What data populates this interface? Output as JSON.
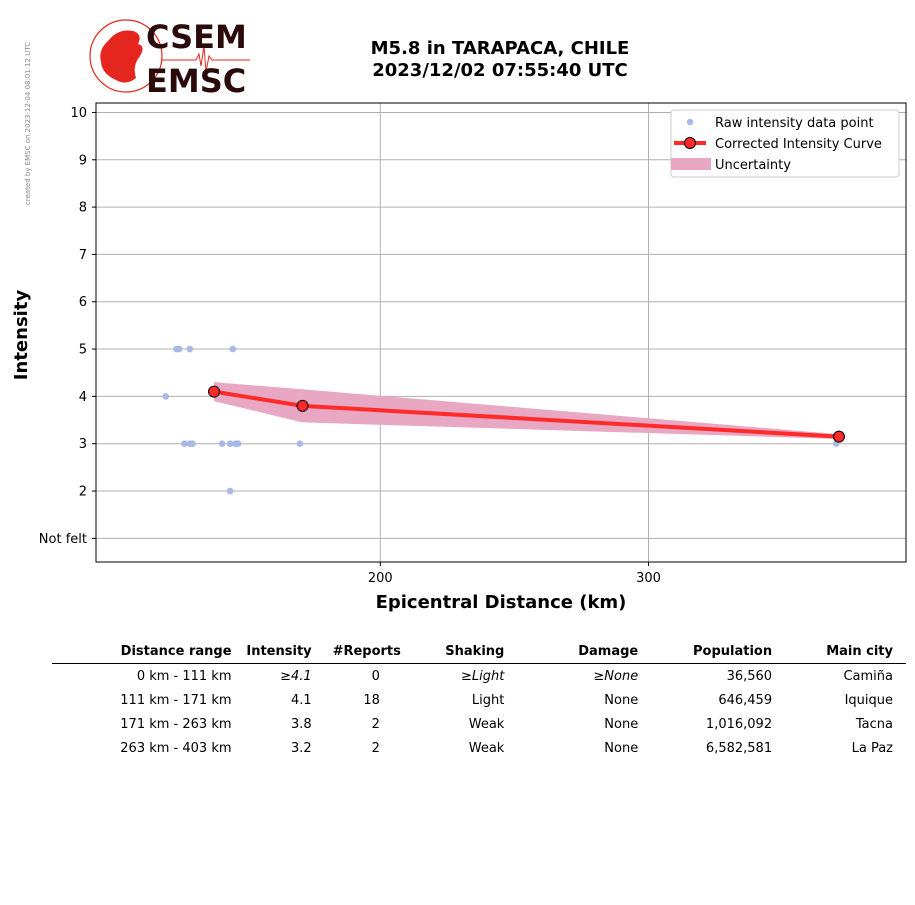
{
  "header": {
    "side_note": "created by EMSC on 2023-12-04 08:01:12 UTC",
    "logo_text_top": "CSEM",
    "logo_text_bottom": "EMSC",
    "title_line1": "M5.8 in TARAPACA, CHILE",
    "title_line2": "2023/12/02 07:55:40 UTC"
  },
  "colors": {
    "raw_points": "#aab8e6",
    "curve": "#ff2a2a",
    "uncertainty": "#e8a8c3",
    "grid": "#b0b0b0",
    "logo_red": "#e5261f",
    "logo_dark": "#2b0a0a"
  },
  "chart_data": {
    "type": "scatter",
    "xlabel": "Epicentral Distance (km)",
    "ylabel": "Intensity",
    "xlim": [
      94,
      396
    ],
    "ylim": [
      0.5,
      10.2
    ],
    "x_ticks": [
      200,
      300
    ],
    "y_ticks": [
      1,
      2,
      3,
      4,
      5,
      6,
      7,
      8,
      9,
      10
    ],
    "y_tick_labels": [
      "Not felt",
      "2",
      "3",
      "4",
      "5",
      "6",
      "7",
      "8",
      "9",
      "10"
    ],
    "grid": true,
    "legend_position": "top-right",
    "legend": [
      "Raw intensity data point",
      "Corrected Intensity Curve",
      "Uncertainty"
    ],
    "series": [
      {
        "name": "Raw intensity data point",
        "points": [
          [
            124,
            5
          ],
          [
            125,
            5
          ],
          [
            129,
            5
          ],
          [
            145,
            5
          ],
          [
            120,
            4
          ],
          [
            127,
            3
          ],
          [
            129,
            3
          ],
          [
            130,
            3
          ],
          [
            141,
            3
          ],
          [
            144,
            3
          ],
          [
            146,
            3
          ],
          [
            147,
            3
          ],
          [
            170,
            3
          ],
          [
            370,
            3
          ],
          [
            144,
            2
          ]
        ]
      },
      {
        "name": "Corrected Intensity Curve",
        "points": [
          [
            138,
            4.1
          ],
          [
            171,
            3.8
          ],
          [
            371,
            3.15
          ]
        ]
      },
      {
        "name": "Uncertainty",
        "x": [
          138,
          171,
          371
        ],
        "upper": [
          4.3,
          4.15,
          3.2
        ],
        "lower": [
          3.9,
          3.45,
          3.1
        ]
      }
    ]
  },
  "table": {
    "headers": [
      "Distance range",
      "Intensity",
      "#Reports",
      "Shaking",
      "Damage",
      "Population",
      "Main city"
    ],
    "rows": [
      [
        "0 km -  111 km",
        "≥4.1",
        "0",
        "≥Light",
        "≥None",
        "36,560",
        "Camiña"
      ],
      [
        "111 km -  171 km",
        "4.1",
        "18",
        "Light",
        "None",
        "646,459",
        "Iquique"
      ],
      [
        "171 km -  263 km",
        "3.8",
        "2",
        "Weak",
        "None",
        "1,016,092",
        "Tacna"
      ],
      [
        "263 km -  403 km",
        "3.2",
        "2",
        "Weak",
        "None",
        "6,582,581",
        "La Paz"
      ]
    ]
  }
}
